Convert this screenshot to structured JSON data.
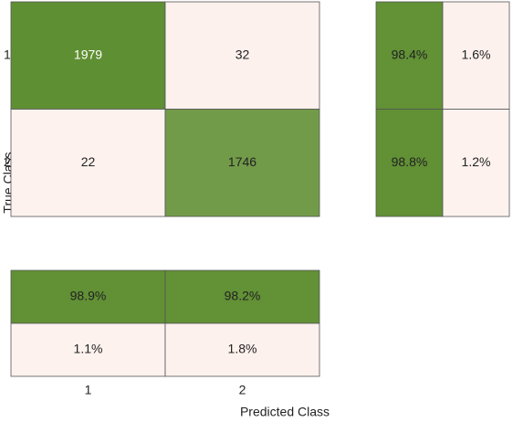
{
  "chart_data": {
    "type": "confusion_matrix",
    "xlabel": "Predicted Class",
    "ylabel": "True Class",
    "classes": [
      "1",
      "2"
    ],
    "matrix": [
      [
        1979,
        32
      ],
      [
        22,
        1746
      ]
    ],
    "row_summary": {
      "values": [
        [
          98.4,
          1.6
        ],
        [
          98.8,
          1.2
        ]
      ],
      "value_labels": [
        [
          "98.4%",
          "1.6%"
        ],
        [
          "98.8%",
          "1.2%"
        ]
      ]
    },
    "column_summary": {
      "values": [
        [
          98.9,
          98.2
        ],
        [
          1.1,
          1.8
        ]
      ],
      "value_labels": [
        [
          "98.9%",
          "98.2%"
        ],
        [
          "1.1%",
          "1.8%"
        ]
      ]
    },
    "colors": {
      "high": "#5f8f33",
      "low": "#fff3f0"
    }
  }
}
